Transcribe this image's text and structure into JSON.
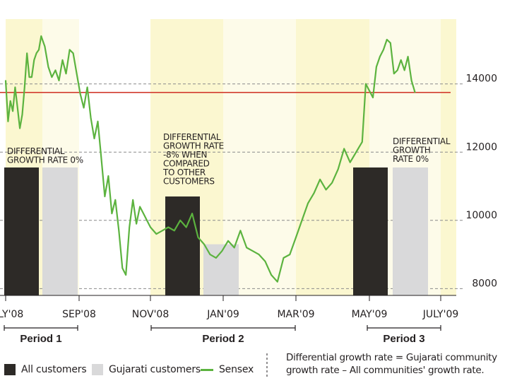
{
  "colors": {
    "all_customers": "#2d2a27",
    "gujarati_customers": "#d9d9da",
    "sensex": "#5cb33f",
    "reference_line": "#d23c2f",
    "band_strong": "#fbf7d0",
    "band_light": "#fdfbe9",
    "grid": "#8a8a8a"
  },
  "legend": {
    "all_customers": "All customers",
    "gujarati_customers": "Gujarati customers",
    "sensex": "Sensex"
  },
  "footnote": "Differential growth rate = Gujarati community growth rate – All communities' growth rate.",
  "chart_data": {
    "type": "bar+line",
    "x_ticks": [
      "JULY'08",
      "SEP'08",
      "NOV'08",
      "JAN'09",
      "MAR'09",
      "MAY'09",
      "JULY'09"
    ],
    "y_axis": {
      "ticks": [
        "8000",
        "10000",
        "12000",
        "14000"
      ],
      "range": [
        7800,
        15900
      ],
      "position": "right",
      "gridlines": "dashed"
    },
    "reference_line": {
      "value": 13750
    },
    "periods": [
      {
        "label": "Period 1",
        "from": "JULY'08",
        "to": "SEP'08"
      },
      {
        "label": "Period 2",
        "from": "NOV'08",
        "to": "MAR'09"
      },
      {
        "label": "Period 3",
        "from": "MAY'09",
        "to": "JULY'09"
      }
    ],
    "bars": [
      {
        "period": "Period 1",
        "all_customers": 11550,
        "gujarati_customers": 11550,
        "annotation": "DIFFERENTIAL GROWTH RATE 0%"
      },
      {
        "period": "Period 2",
        "all_customers": 10700,
        "gujarati_customers": 9300,
        "annotation": "DIFFERENTIAL GROWTH RATE -8% WHEN COMPARED TO OTHER CUSTOMERS"
      },
      {
        "period": "Period 3",
        "all_customers": 11550,
        "gujarati_customers": 11550,
        "annotation": "DIFFERENTIAL GROWTH RATE 0%"
      }
    ],
    "sensex_series": {
      "name": "Sensex",
      "points": [
        [
          "2008-07-01",
          14100
        ],
        [
          "2008-07-03",
          12900
        ],
        [
          "2008-07-05",
          13500
        ],
        [
          "2008-07-07",
          13200
        ],
        [
          "2008-07-09",
          13900
        ],
        [
          "2008-07-11",
          13300
        ],
        [
          "2008-07-13",
          12700
        ],
        [
          "2008-07-15",
          13100
        ],
        [
          "2008-07-17",
          13900
        ],
        [
          "2008-07-19",
          14900
        ],
        [
          "2008-07-21",
          14200
        ],
        [
          "2008-07-23",
          14200
        ],
        [
          "2008-07-25",
          14700
        ],
        [
          "2008-07-27",
          14900
        ],
        [
          "2008-07-29",
          15000
        ],
        [
          "2008-07-31",
          15400
        ],
        [
          "2008-08-03",
          15100
        ],
        [
          "2008-08-06",
          14500
        ],
        [
          "2008-08-09",
          14200
        ],
        [
          "2008-08-12",
          14400
        ],
        [
          "2008-08-15",
          14100
        ],
        [
          "2008-08-18",
          14700
        ],
        [
          "2008-08-21",
          14300
        ],
        [
          "2008-08-24",
          15000
        ],
        [
          "2008-08-27",
          14900
        ],
        [
          "2008-08-30",
          14300
        ],
        [
          "2008-09-02",
          13700
        ],
        [
          "2008-09-05",
          13300
        ],
        [
          "2008-09-08",
          13900
        ],
        [
          "2008-09-11",
          13000
        ],
        [
          "2008-09-14",
          12400
        ],
        [
          "2008-09-17",
          12900
        ],
        [
          "2008-09-20",
          11800
        ],
        [
          "2008-09-23",
          10700
        ],
        [
          "2008-09-26",
          11300
        ],
        [
          "2008-09-29",
          10200
        ],
        [
          "2008-10-02",
          10600
        ],
        [
          "2008-10-05",
          9700
        ],
        [
          "2008-10-08",
          8600
        ],
        [
          "2008-10-11",
          8400
        ],
        [
          "2008-10-14",
          9800
        ],
        [
          "2008-10-17",
          10600
        ],
        [
          "2008-10-20",
          9900
        ],
        [
          "2008-10-23",
          10400
        ],
        [
          "2008-10-26",
          10200
        ],
        [
          "2008-10-29",
          10000
        ],
        [
          "2008-11-01",
          9800
        ],
        [
          "2008-11-06",
          9600
        ],
        [
          "2008-11-11",
          9700
        ],
        [
          "2008-11-16",
          9800
        ],
        [
          "2008-11-21",
          9700
        ],
        [
          "2008-11-26",
          10000
        ],
        [
          "2008-12-01",
          9800
        ],
        [
          "2008-12-06",
          10200
        ],
        [
          "2008-12-11",
          9500
        ],
        [
          "2008-12-16",
          9300
        ],
        [
          "2008-12-21",
          9000
        ],
        [
          "2008-12-26",
          8900
        ],
        [
          "2008-12-31",
          9100
        ],
        [
          "2009-01-05",
          9400
        ],
        [
          "2009-01-10",
          9200
        ],
        [
          "2009-01-15",
          9700
        ],
        [
          "2009-01-20",
          9200
        ],
        [
          "2009-01-25",
          9100
        ],
        [
          "2009-01-30",
          9000
        ],
        [
          "2009-02-04",
          8800
        ],
        [
          "2009-02-09",
          8400
        ],
        [
          "2009-02-14",
          8200
        ],
        [
          "2009-02-19",
          8900
        ],
        [
          "2009-02-24",
          9000
        ],
        [
          "2009-03-01",
          9500
        ],
        [
          "2009-03-06",
          10000
        ],
        [
          "2009-03-11",
          10500
        ],
        [
          "2009-03-16",
          10800
        ],
        [
          "2009-03-21",
          11200
        ],
        [
          "2009-03-26",
          10900
        ],
        [
          "2009-03-31",
          11100
        ],
        [
          "2009-04-05",
          11500
        ],
        [
          "2009-04-10",
          12100
        ],
        [
          "2009-04-15",
          11700
        ],
        [
          "2009-04-20",
          12000
        ],
        [
          "2009-04-25",
          12300
        ],
        [
          "2009-04-28",
          14000
        ],
        [
          "2009-05-01",
          13800
        ],
        [
          "2009-05-04",
          13600
        ],
        [
          "2009-05-07",
          14500
        ],
        [
          "2009-05-10",
          14800
        ],
        [
          "2009-05-13",
          15000
        ],
        [
          "2009-05-16",
          15300
        ],
        [
          "2009-05-19",
          15200
        ],
        [
          "2009-05-22",
          14300
        ],
        [
          "2009-05-25",
          14400
        ],
        [
          "2009-05-28",
          14700
        ],
        [
          "2009-05-31",
          14400
        ],
        [
          "2009-06-03",
          14800
        ],
        [
          "2009-06-06",
          14100
        ],
        [
          "2009-06-09",
          13750
        ]
      ]
    },
    "grid": true,
    "legend_position": "bottom"
  }
}
